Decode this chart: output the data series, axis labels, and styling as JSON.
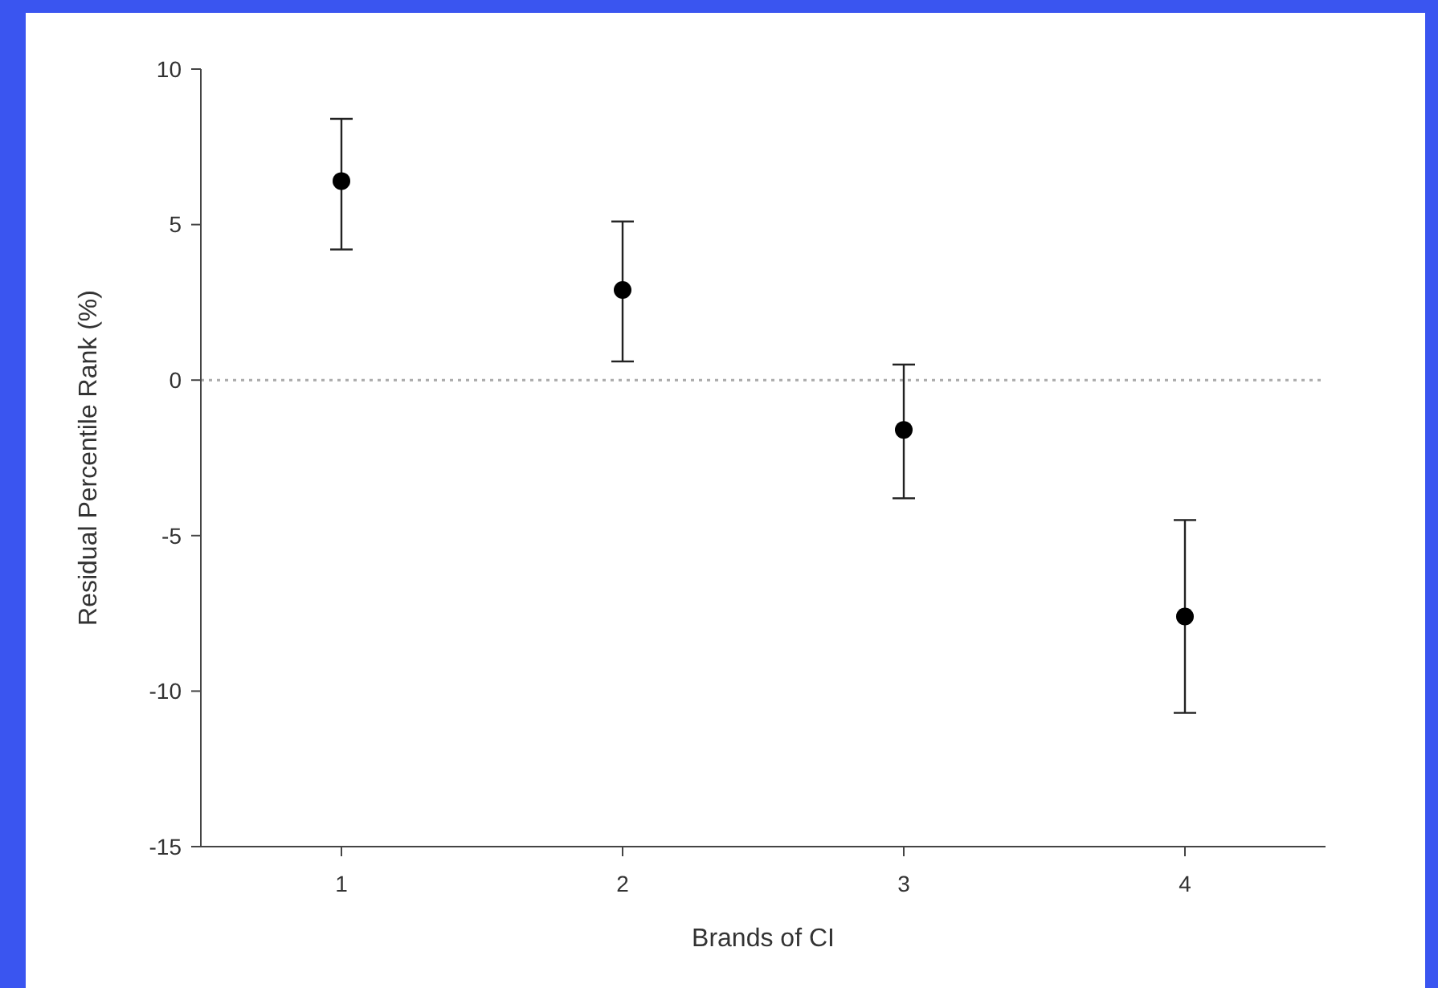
{
  "chart_data": {
    "type": "scatter",
    "xlabel": "Brands of CI",
    "ylabel": "Residual Percentile Rank (%)",
    "categories": [
      "1",
      "2",
      "3",
      "4"
    ],
    "values": [
      6.4,
      2.9,
      -1.6,
      -7.6
    ],
    "errors": [
      [
        4.2,
        8.4
      ],
      [
        0.6,
        5.1
      ],
      [
        -3.8,
        0.5
      ],
      [
        -10.7,
        -4.5
      ]
    ],
    "color": "#000000",
    "marker": "circle",
    "ylim": [
      -15,
      10
    ],
    "yticks": [
      -15,
      -10,
      -5,
      0,
      5,
      10
    ],
    "grid": false,
    "ref_lines": [
      {
        "axis": "y",
        "value": 0,
        "color": "#aaaaaa",
        "line_style": "dotted"
      }
    ]
  }
}
